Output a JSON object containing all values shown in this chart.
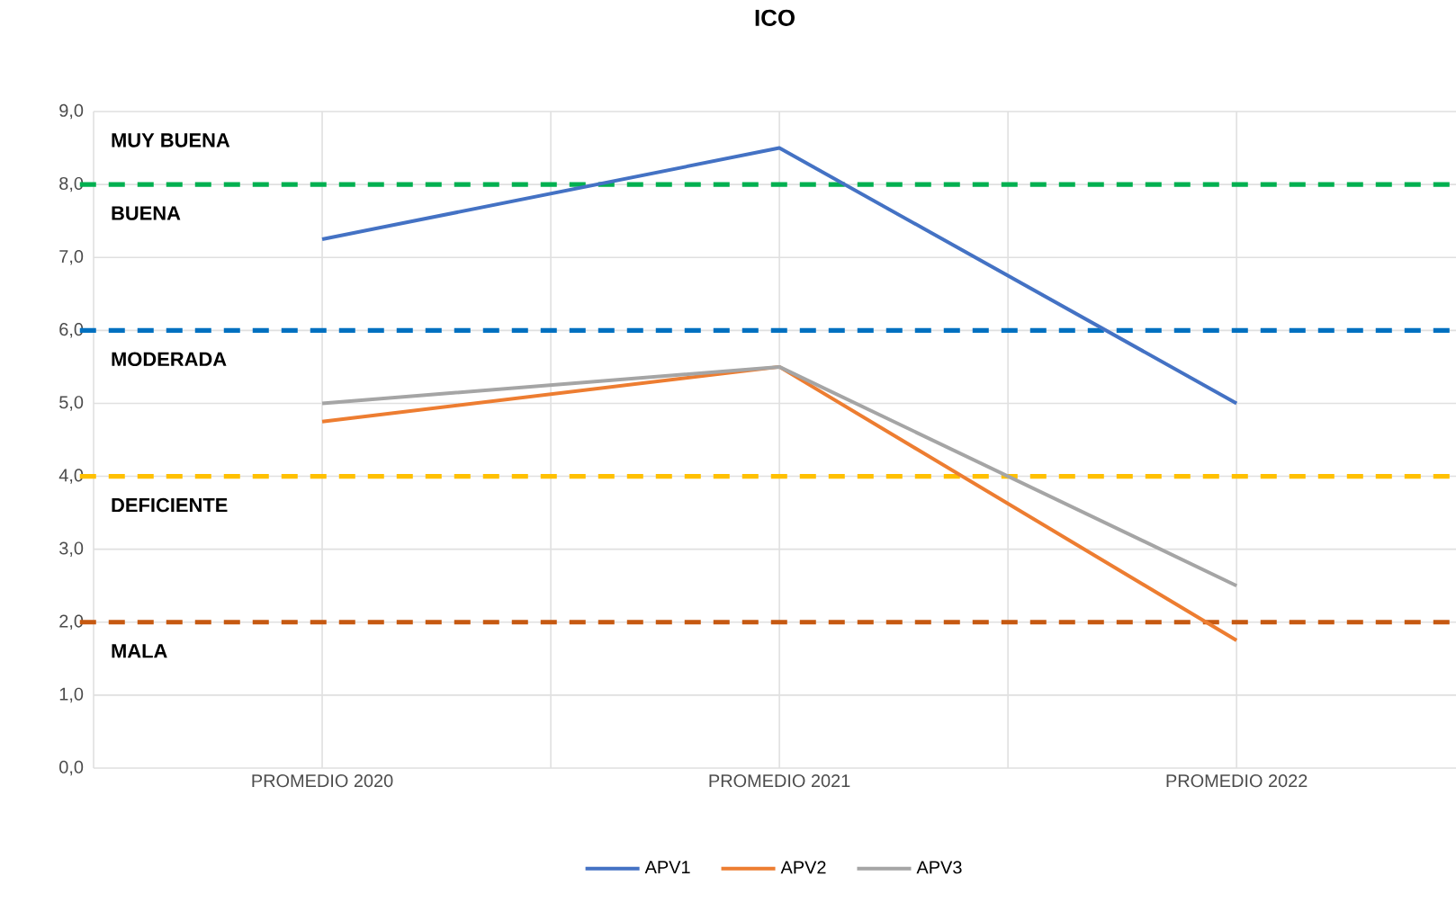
{
  "chart_data": {
    "type": "line",
    "title": "ICO",
    "categories": [
      "PROMEDIO 2020",
      "PROMEDIO 2021",
      "PROMEDIO 2022"
    ],
    "series": [
      {
        "name": "APV1",
        "color": "#4472c4",
        "values": [
          7.25,
          8.5,
          5.0
        ]
      },
      {
        "name": "APV2",
        "color": "#ed7d31",
        "values": [
          4.75,
          5.5,
          1.75
        ]
      },
      {
        "name": "APV3",
        "color": "#a5a5a5",
        "values": [
          5.0,
          5.5,
          2.5
        ]
      }
    ],
    "ylim": [
      0,
      9
    ],
    "yticks": [
      {
        "value": 0,
        "label": "0,0"
      },
      {
        "value": 1,
        "label": "1,0"
      },
      {
        "value": 2,
        "label": "2,0"
      },
      {
        "value": 3,
        "label": "3,0"
      },
      {
        "value": 4,
        "label": "4,0"
      },
      {
        "value": 5,
        "label": "5,0"
      },
      {
        "value": 6,
        "label": "6,0"
      },
      {
        "value": 7,
        "label": "7,0"
      },
      {
        "value": 8,
        "label": "8,0"
      },
      {
        "value": 9,
        "label": "9,0"
      }
    ],
    "ref_lines": [
      {
        "axis": "y",
        "value": 8,
        "color": "#00b050",
        "line_style": "dashed"
      },
      {
        "axis": "y",
        "value": 6,
        "color": "#0070c0",
        "line_style": "dashed"
      },
      {
        "axis": "y",
        "value": 4,
        "color": "#ffc000",
        "line_style": "dashed"
      },
      {
        "axis": "y",
        "value": 2,
        "color": "#c65911",
        "line_style": "dashed"
      }
    ],
    "annotations": [
      "MUY BUENA",
      "BUENA",
      "MODERADA",
      "DEFICIENTE",
      "MALA"
    ],
    "grid": true,
    "legend": "bottom",
    "marker": "none",
    "line_style": "solid"
  }
}
